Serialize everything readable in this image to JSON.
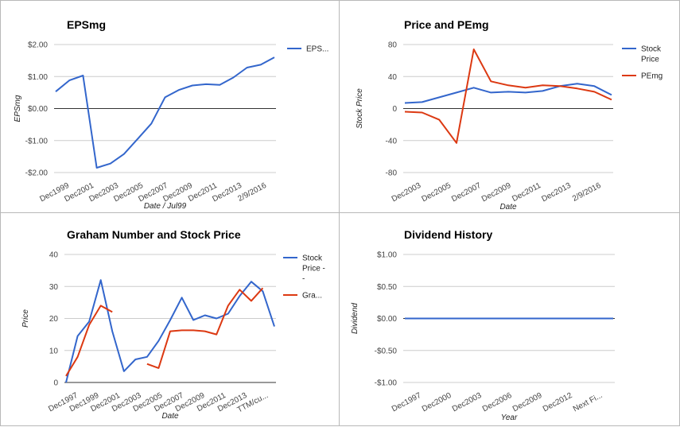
{
  "chart_data": [
    {
      "type": "line",
      "title": "EPSmg",
      "xlabel": "Date / Jul99",
      "ylabel": "EPSmg",
      "ylim": [
        -2,
        2
      ],
      "yticks": [
        "$2.00",
        "$1.00",
        "$0.00",
        "-$1.00",
        "-$2.00"
      ],
      "xticks": [
        "Dec1999",
        "Dec2001",
        "Dec2003",
        "Dec2005",
        "Dec2007",
        "Dec2009",
        "Dec2011",
        "Dec2013",
        "2/9/2016"
      ],
      "legend_position": "right",
      "series": [
        {
          "name": "EPS...",
          "color": "#3366cc",
          "values": [
            0.53,
            0.88,
            1.03,
            -1.85,
            -1.72,
            -1.42,
            -0.95,
            -0.47,
            0.35,
            0.58,
            0.72,
            0.76,
            0.74,
            0.97,
            1.28,
            1.37,
            1.6
          ]
        }
      ]
    },
    {
      "type": "line",
      "title": "Price and PEmg",
      "xlabel": "Date",
      "ylabel": "Stock Price",
      "ylim": [
        -80,
        80
      ],
      "yticks": [
        "80",
        "40",
        "0",
        "-40",
        "-80"
      ],
      "xticks": [
        "Dec2003",
        "Dec2005",
        "Dec2007",
        "Dec2009",
        "Dec2011",
        "Dec2013",
        "2/9/2016"
      ],
      "legend_position": "right",
      "series": [
        {
          "name": "Stock Price",
          "color": "#3366cc",
          "values": [
            7,
            8,
            14,
            20,
            26,
            20,
            21,
            20,
            22,
            28,
            31,
            28,
            17
          ]
        },
        {
          "name": "PEmg",
          "color": "#dc3912",
          "values": [
            -4,
            -5,
            -14,
            -43,
            74,
            34,
            29,
            26,
            29,
            28,
            25,
            21,
            11
          ]
        }
      ]
    },
    {
      "type": "line",
      "title": "Graham Number and Stock Price",
      "xlabel": "Date",
      "ylabel": "Price",
      "ylim": [
        0,
        40
      ],
      "yticks": [
        "40",
        "30",
        "20",
        "10",
        "0"
      ],
      "xticks": [
        "Dec1997",
        "Dec1999",
        "Dec2001",
        "Dec2003",
        "Dec2005",
        "Dec2007",
        "Dec2009",
        "Dec2011",
        "Dec2013",
        "TTM/cu..."
      ],
      "legend_position": "right",
      "series": [
        {
          "name": "Stock Price - -",
          "color": "#3366cc",
          "values": [
            0,
            14.5,
            19,
            32,
            16,
            3.5,
            7.2,
            8,
            13,
            19.5,
            26.5,
            19.5,
            21,
            20,
            21.5,
            27,
            31.5,
            28.5,
            17.5
          ]
        },
        {
          "name": "Gra...",
          "color": "#dc3912",
          "values": [
            2,
            8,
            18,
            24,
            22,
            null,
            null,
            5.8,
            4.5,
            16,
            16.3,
            16.3,
            16,
            15,
            24,
            29,
            25.5,
            29.5,
            null
          ]
        }
      ]
    },
    {
      "type": "line",
      "title": "Dividend History",
      "xlabel": "Year",
      "ylabel": "Dividend",
      "ylim": [
        -1,
        1
      ],
      "yticks": [
        "$1.00",
        "$0.50",
        "$0.00",
        "-$0.50",
        "-$1.00"
      ],
      "xticks": [
        "Dec1997",
        "Dec2000",
        "Dec2003",
        "Dec2006",
        "Dec2009",
        "Dec2012",
        "Next Fi..."
      ],
      "series": [
        {
          "color": "#3366cc",
          "values": [
            0,
            0,
            0,
            0,
            0,
            0,
            0,
            0,
            0,
            0,
            0,
            0,
            0,
            0,
            0,
            0,
            0,
            0,
            0,
            0,
            0,
            0
          ]
        }
      ]
    }
  ]
}
